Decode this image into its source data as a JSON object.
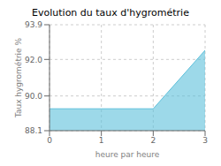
{
  "chart_data": {
    "type": "area",
    "title": "Evolution du taux d'hygrométrie",
    "xlabel": "heure par heure",
    "ylabel": "Taux hygrométrie %",
    "x": [
      0,
      1,
      2,
      3
    ],
    "values": [
      89.3,
      89.3,
      89.3,
      92.5
    ],
    "color": "#5bbfda",
    "xlim": [
      0,
      3
    ],
    "xticks": [
      0,
      1,
      2,
      3
    ],
    "ylim": [
      88.1,
      93.9
    ],
    "yticks": [
      88.1,
      {
        "value": 90.0,
        "label": "90.0"
      },
      {
        "value": 92.0,
        "label": "92.0"
      },
      93.9
    ],
    "grid": true
  }
}
